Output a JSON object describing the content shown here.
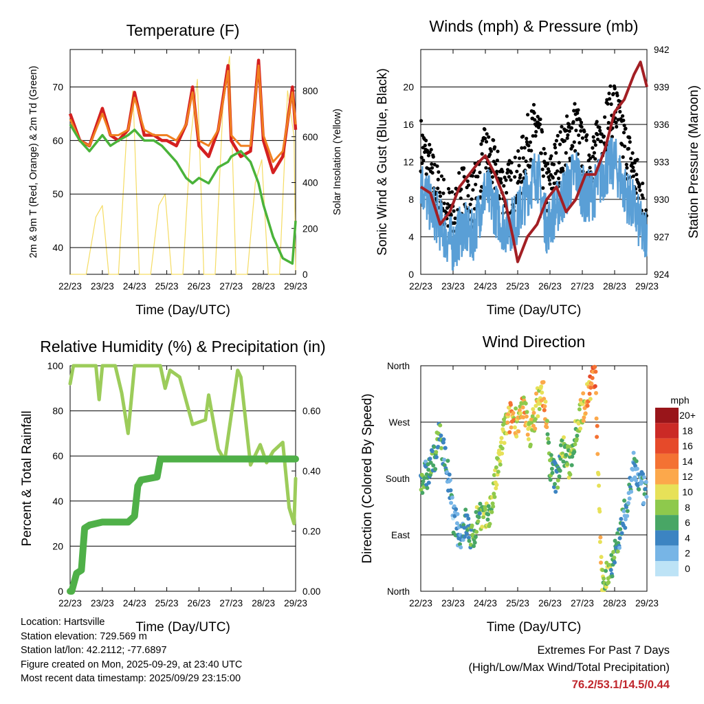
{
  "chart_data": [
    {
      "type": "line",
      "title": "Temperature (F)",
      "xlabel": "Time (Day/UTC)",
      "ylabel": "2m & 9m T (Red, Orange) & 2m Td (Green)",
      "y2label": "Solar Insolation (Yellow)",
      "x_ticks": [
        "22/23",
        "23/23",
        "24/23",
        "25/23",
        "26/23",
        "27/23",
        "28/23",
        "29/23"
      ],
      "ylim": [
        35,
        77
      ],
      "y_ticks": [
        40,
        50,
        60,
        70
      ],
      "y2lim": [
        0,
        980
      ],
      "y2_ticks": [
        0,
        200,
        400,
        600,
        800
      ],
      "series": [
        {
          "name": "2m T",
          "color": "#d42020",
          "x": [
            0,
            0.3,
            0.6,
            1.0,
            1.25,
            1.5,
            1.8,
            2.0,
            2.3,
            2.6,
            2.85,
            3.0,
            3.3,
            3.6,
            3.8,
            4.0,
            4.3,
            4.6,
            4.9,
            5.0,
            5.3,
            5.6,
            5.85,
            6.0,
            6.3,
            6.6,
            6.9,
            7.0
          ],
          "values": [
            65,
            60,
            59,
            66,
            61,
            60,
            62,
            69,
            61,
            61,
            60,
            60,
            59,
            63,
            70,
            59,
            57,
            62,
            74,
            60,
            57,
            58,
            75,
            60,
            54,
            57,
            70,
            62
          ]
        },
        {
          "name": "9m T",
          "color": "#f07f20",
          "x": [
            0,
            0.3,
            0.6,
            1.0,
            1.25,
            1.5,
            1.8,
            2.0,
            2.3,
            2.6,
            2.85,
            3.0,
            3.3,
            3.6,
            3.8,
            4.0,
            4.3,
            4.6,
            4.9,
            5.0,
            5.3,
            5.6,
            5.85,
            6.0,
            6.3,
            6.6,
            6.9,
            7.0
          ],
          "values": [
            64,
            60,
            59,
            65,
            61,
            61,
            62,
            68,
            62,
            61,
            61,
            61,
            60,
            63,
            69,
            60,
            59,
            62,
            73,
            61,
            59,
            59,
            74,
            61,
            56,
            58,
            69,
            63
          ]
        },
        {
          "name": "2m Td",
          "color": "#4ab33a",
          "x": [
            0,
            0.3,
            0.6,
            1.0,
            1.25,
            1.5,
            1.8,
            2.0,
            2.3,
            2.6,
            2.85,
            3.0,
            3.3,
            3.6,
            3.8,
            4.0,
            4.3,
            4.6,
            4.9,
            5.0,
            5.3,
            5.6,
            5.85,
            6.0,
            6.3,
            6.6,
            6.9,
            7.0
          ],
          "values": [
            63,
            60,
            58,
            61,
            59,
            60,
            61,
            62,
            60,
            60,
            59,
            58,
            56,
            53,
            52,
            53,
            52,
            55,
            56,
            57,
            58,
            56,
            52,
            48,
            42,
            38,
            37,
            45
          ]
        },
        {
          "name": "Solar Insolation",
          "color": "#f5dc63",
          "axis": "y2",
          "x": [
            0,
            0.5,
            0.8,
            1.0,
            1.2,
            1.5,
            1.75,
            1.95,
            2.15,
            2.5,
            2.75,
            2.95,
            3.15,
            3.5,
            3.75,
            3.95,
            4.15,
            4.5,
            4.75,
            4.95,
            5.15,
            5.5,
            5.75,
            5.95,
            6.15,
            6.5,
            6.75,
            6.95,
            7.0
          ],
          "values": [
            0,
            0,
            250,
            300,
            0,
            0,
            600,
            800,
            0,
            0,
            300,
            350,
            0,
            0,
            600,
            850,
            0,
            0,
            750,
            950,
            0,
            0,
            400,
            500,
            0,
            0,
            800,
            600,
            0
          ]
        }
      ]
    },
    {
      "type": "line",
      "title": "Winds (mph) & Pressure (mb)",
      "xlabel": "Time (Day/UTC)",
      "ylabel": "Sonic Wind & Gust (Blue, Black)",
      "y2label": "Station Pressure (Maroon)",
      "x_ticks": [
        "22/23",
        "23/23",
        "24/23",
        "25/23",
        "26/23",
        "27/23",
        "28/23",
        "29/23"
      ],
      "ylim": [
        0,
        24
      ],
      "y_ticks": [
        0,
        4,
        8,
        12,
        16,
        20
      ],
      "y2lim": [
        924,
        942
      ],
      "y2_ticks": [
        924,
        927,
        930,
        933,
        936,
        939,
        942
      ],
      "series": [
        {
          "name": "Sonic Wind",
          "color": "#5a9fd6",
          "x": [
            0,
            0.2,
            0.5,
            0.8,
            1.0,
            1.3,
            1.6,
            2.0,
            2.3,
            2.6,
            3.0,
            3.3,
            3.6,
            3.9,
            4.2,
            4.5,
            4.8,
            5.1,
            5.4,
            5.7,
            6.0,
            6.3,
            6.6,
            6.9,
            7.0
          ],
          "values": [
            10,
            8,
            6,
            4,
            3,
            5,
            4,
            9,
            7,
            5,
            6,
            9,
            11,
            5,
            7,
            9,
            11,
            8,
            9,
            11,
            12,
            9,
            7,
            4,
            5
          ]
        },
        {
          "name": "Gust",
          "color": "#000000",
          "x": [
            0,
            0.2,
            0.5,
            0.8,
            1.0,
            1.3,
            1.6,
            2.0,
            2.3,
            2.6,
            3.0,
            3.3,
            3.6,
            3.9,
            4.2,
            4.5,
            4.8,
            5.1,
            5.4,
            5.7,
            6.0,
            6.3,
            6.6,
            6.9,
            7.0
          ],
          "values": [
            14,
            12,
            9,
            7,
            6,
            9,
            8,
            13,
            11,
            9,
            10,
            14,
            16,
            9,
            12,
            14,
            16,
            12,
            13,
            16,
            18,
            14,
            11,
            7,
            7
          ]
        },
        {
          "name": "Station Pressure",
          "color": "#a31f24",
          "axis": "y2",
          "x": [
            0,
            0.3,
            0.6,
            0.9,
            1.2,
            1.5,
            1.8,
            2.0,
            2.3,
            2.6,
            2.85,
            3.0,
            3.3,
            3.6,
            3.9,
            4.2,
            4.5,
            4.8,
            5.1,
            5.4,
            5.7,
            6.0,
            6.3,
            6.6,
            6.8,
            7.0
          ],
          "values": [
            931,
            930.5,
            928,
            929,
            931,
            932,
            933,
            933.5,
            932,
            930,
            927,
            925,
            927,
            928,
            930,
            931,
            929,
            930,
            932,
            932,
            934,
            937,
            938,
            940,
            941,
            939
          ]
        }
      ]
    },
    {
      "type": "line",
      "title": "Relative Humidity (%) & Precipitation (in)",
      "xlabel": "Time (Day/UTC)",
      "ylabel": "Percent & Total Rainfall",
      "x_ticks": [
        "22/23",
        "23/23",
        "24/23",
        "25/23",
        "26/23",
        "27/23",
        "28/23",
        "29/23"
      ],
      "ylim": [
        0,
        100
      ],
      "y_ticks": [
        0,
        20,
        40,
        60,
        80,
        100
      ],
      "y2lim": [
        0,
        0.75
      ],
      "y2_ticks": [
        "0.00",
        "0.20",
        "0.40",
        "0.60"
      ],
      "series": [
        {
          "name": "Relative Humidity",
          "color": "#9ccc5a",
          "x": [
            0,
            0.1,
            0.3,
            0.8,
            0.9,
            1.0,
            1.4,
            1.6,
            1.8,
            2.0,
            2.1,
            2.5,
            2.8,
            2.95,
            3.1,
            3.4,
            3.8,
            4.2,
            4.3,
            4.6,
            4.8,
            5.0,
            5.2,
            5.3,
            5.6,
            5.9,
            6.1,
            6.3,
            6.6,
            6.8,
            6.95,
            7.0
          ],
          "values": [
            92,
            100,
            100,
            100,
            85,
            100,
            100,
            88,
            70,
            100,
            100,
            100,
            100,
            90,
            98,
            95,
            74,
            76,
            87,
            63,
            58,
            78,
            98,
            95,
            56,
            65,
            57,
            62,
            66,
            37,
            30,
            50
          ]
        },
        {
          "name": "Total Precipitation",
          "color": "#4fb048",
          "axis": "y2",
          "x": [
            0,
            0.05,
            0.2,
            0.35,
            0.45,
            0.6,
            1.0,
            1.5,
            1.8,
            2.0,
            2.1,
            2.2,
            2.7,
            2.8,
            7.0
          ],
          "values": [
            0,
            0,
            0.06,
            0.07,
            0.21,
            0.22,
            0.23,
            0.23,
            0.23,
            0.25,
            0.35,
            0.37,
            0.38,
            0.44,
            0.44
          ]
        }
      ]
    },
    {
      "type": "scatter",
      "title": "Wind Direction",
      "xlabel": "Time (Day/UTC)",
      "ylabel": "Direction (Colored By Speed)",
      "x_ticks": [
        "22/23",
        "23/23",
        "24/23",
        "25/23",
        "26/23",
        "27/23",
        "28/23",
        "29/23"
      ],
      "y_ticks": [
        "North",
        "East",
        "South",
        "West",
        "North"
      ],
      "ylim": [
        0,
        360
      ],
      "x": [
        0,
        0.2,
        0.4,
        0.6,
        0.8,
        1.0,
        1.2,
        1.4,
        1.6,
        1.8,
        2.0,
        2.2,
        2.4,
        2.6,
        2.8,
        3.0,
        3.2,
        3.4,
        3.6,
        3.8,
        4.0,
        4.2,
        4.4,
        4.6,
        4.8,
        5.0,
        5.2,
        5.4,
        5.6,
        5.8,
        6.0,
        6.2,
        6.4,
        6.6,
        6.8,
        7.0
      ],
      "values": [
        180,
        185,
        210,
        250,
        200,
        120,
        90,
        110,
        80,
        130,
        110,
        140,
        200,
        260,
        280,
        270,
        290,
        250,
        300,
        320,
        200,
        180,
        230,
        200,
        260,
        290,
        320,
        350,
        10,
        30,
        60,
        100,
        140,
        200,
        170,
        150
      ],
      "speeds": [
        7,
        4,
        6,
        6,
        4,
        3,
        4,
        5,
        6,
        7,
        8,
        8,
        9,
        9,
        12,
        10,
        11,
        9,
        10,
        12,
        6,
        5,
        8,
        7,
        8,
        10,
        13,
        14,
        9,
        8,
        6,
        5,
        4,
        4,
        3,
        4
      ],
      "colorbar_label": "mph",
      "colorbar_ticks": [
        "20+",
        "18",
        "16",
        "14",
        "12",
        "10",
        "8",
        "6",
        "4",
        "2",
        "0"
      ],
      "colorbar_colors": [
        "#99151a",
        "#cb2a26",
        "#e64a2a",
        "#f47233",
        "#fca84b",
        "#e7e158",
        "#8ec94c",
        "#48a665",
        "#3c84c2",
        "#77b5e6",
        "#bde3f6"
      ]
    }
  ],
  "info": {
    "location": "Location: Hartsville",
    "elevation": "Station elevation: 729.569 m",
    "latlon": "Station lat/lon: 42.2112; -77.6897",
    "created": "Figure created on Mon, 2025-09-29, at 23:40 UTC",
    "recent": "Most recent data timestamp: 2025/09/29 23:15:00"
  },
  "extremes": {
    "title": "Extremes For Past 7 Days",
    "subtitle": "(High/Low/Max Wind/Total Precipitation)",
    "values": "76.2/53.1/14.5/0.44"
  }
}
